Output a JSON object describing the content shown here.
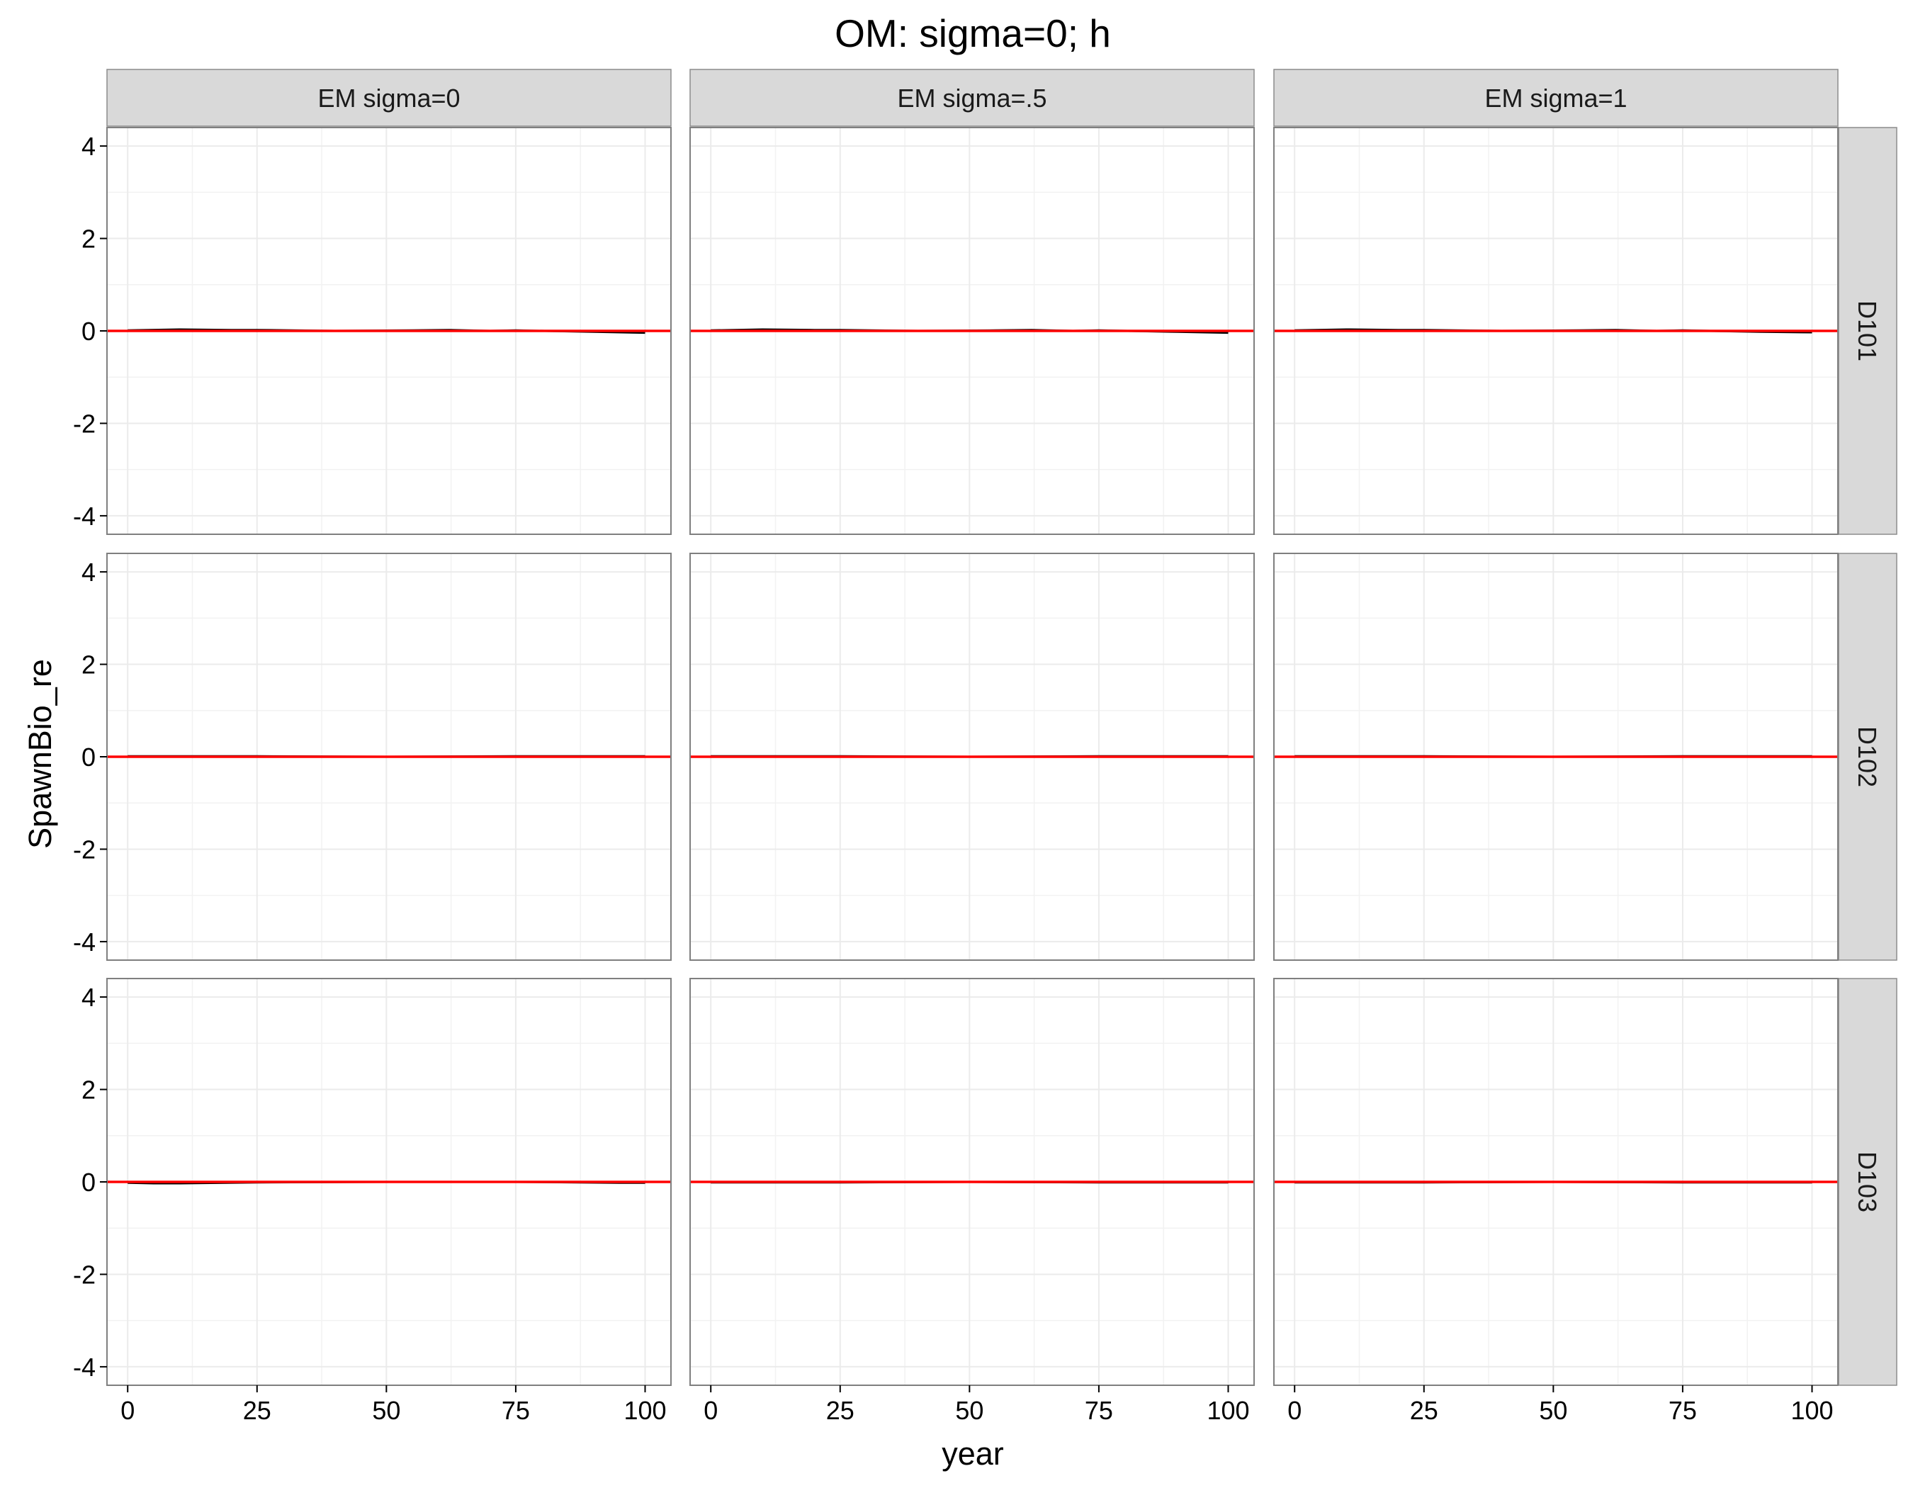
{
  "chart_data": {
    "type": "line",
    "title": "OM: sigma=0; h",
    "xlabel": "year",
    "ylabel": "SpawnBio_re",
    "xlim": [
      -4,
      105
    ],
    "ylim": [
      -4.4,
      4.4
    ],
    "xticks": [
      0,
      25,
      50,
      75,
      100
    ],
    "yticks": [
      -4,
      -2,
      0,
      2,
      4
    ],
    "grid": true,
    "legend": "none",
    "facet_columns": [
      "EM sigma=0",
      "EM sigma=.5",
      "EM sigma=1"
    ],
    "facet_rows": [
      "D101",
      "D102",
      "D103"
    ],
    "reference_line": {
      "y": 0,
      "color": "#ff0000"
    },
    "series_color": "#000000",
    "panels": [
      {
        "row": "D101",
        "col": "EM sigma=0",
        "x": [
          0,
          10,
          20,
          25,
          40,
          55,
          62,
          70,
          75,
          90,
          100
        ],
        "y": [
          0.01,
          0.03,
          0.02,
          0.02,
          0.0,
          0.01,
          0.02,
          0.0,
          0.01,
          -0.02,
          -0.04
        ]
      },
      {
        "row": "D101",
        "col": "EM sigma=.5",
        "x": [
          0,
          10,
          20,
          25,
          40,
          55,
          62,
          70,
          75,
          90,
          100
        ],
        "y": [
          0.01,
          0.03,
          0.02,
          0.02,
          0.0,
          0.01,
          0.02,
          0.0,
          0.01,
          -0.02,
          -0.04
        ]
      },
      {
        "row": "D101",
        "col": "EM sigma=1",
        "x": [
          0,
          10,
          20,
          25,
          40,
          55,
          62,
          70,
          75,
          90,
          100
        ],
        "y": [
          0.01,
          0.03,
          0.02,
          0.02,
          0.0,
          0.01,
          0.02,
          0.0,
          0.01,
          -0.02,
          -0.03
        ]
      },
      {
        "row": "D102",
        "col": "EM sigma=0",
        "x": [
          0,
          25,
          50,
          75,
          100
        ],
        "y": [
          0.01,
          0.01,
          0.0,
          0.01,
          0.01
        ]
      },
      {
        "row": "D102",
        "col": "EM sigma=.5",
        "x": [
          0,
          25,
          50,
          75,
          100
        ],
        "y": [
          0.01,
          0.01,
          0.0,
          0.01,
          0.01
        ]
      },
      {
        "row": "D102",
        "col": "EM sigma=1",
        "x": [
          0,
          25,
          50,
          75,
          100
        ],
        "y": [
          0.01,
          0.01,
          0.0,
          0.01,
          0.01
        ]
      },
      {
        "row": "D103",
        "col": "EM sigma=0",
        "x": [
          0,
          5,
          10,
          25,
          50,
          75,
          95,
          100
        ],
        "y": [
          -0.02,
          -0.03,
          -0.03,
          -0.01,
          0.0,
          0.0,
          -0.02,
          -0.02
        ]
      },
      {
        "row": "D103",
        "col": "EM sigma=.5",
        "x": [
          0,
          25,
          50,
          75,
          100
        ],
        "y": [
          -0.01,
          -0.01,
          0.0,
          -0.01,
          -0.01
        ]
      },
      {
        "row": "D103",
        "col": "EM sigma=1",
        "x": [
          0,
          25,
          50,
          75,
          100
        ],
        "y": [
          -0.01,
          -0.01,
          0.0,
          -0.01,
          -0.01
        ]
      }
    ]
  }
}
